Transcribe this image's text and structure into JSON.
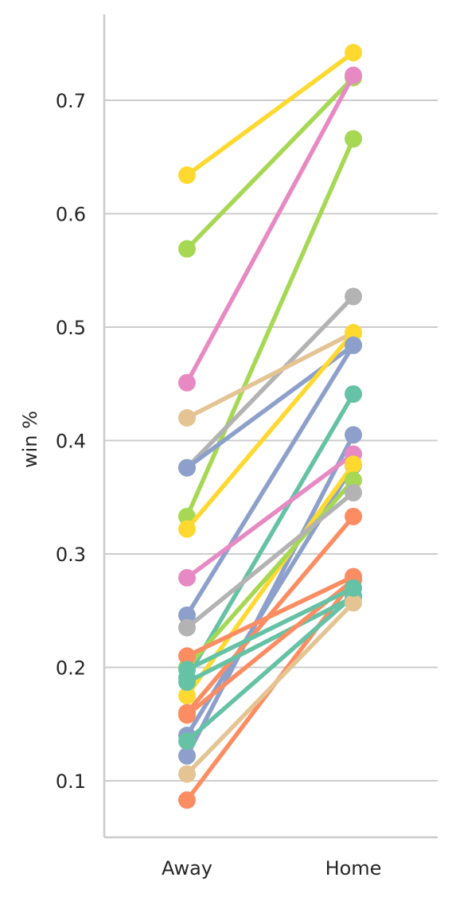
{
  "chart_data": {
    "type": "line",
    "title": "",
    "xlabel": "",
    "ylabel": "win %",
    "categories": [
      "Away",
      "Home"
    ],
    "ylim": [
      0.05,
      0.78
    ],
    "yticks": [
      0.1,
      0.2,
      0.3,
      0.4,
      0.5,
      0.6,
      0.7
    ],
    "ytick_labels": [
      "0.1",
      "0.2",
      "0.3",
      "0.4",
      "0.5",
      "0.6",
      "0.7"
    ],
    "grid": "horizontal",
    "series": [
      {
        "values": [
          0.634,
          0.742
        ],
        "color": "#ffd92f"
      },
      {
        "values": [
          0.569,
          0.72
        ],
        "color": "#a6d854"
      },
      {
        "values": [
          0.451,
          0.722
        ],
        "color": "#e78ac3"
      },
      {
        "values": [
          0.333,
          0.666
        ],
        "color": "#a6d854"
      },
      {
        "values": [
          0.376,
          0.527
        ],
        "color": "#b3b3b3"
      },
      {
        "values": [
          0.42,
          0.495
        ],
        "color": "#e5c494"
      },
      {
        "values": [
          0.376,
          0.484
        ],
        "color": "#8da0cb"
      },
      {
        "values": [
          0.322,
          0.495
        ],
        "color": "#ffd92f"
      },
      {
        "values": [
          0.191,
          0.441
        ],
        "color": "#66c2a5"
      },
      {
        "values": [
          0.246,
          0.484
        ],
        "color": "#8da0cb"
      },
      {
        "values": [
          0.122,
          0.405
        ],
        "color": "#8da0cb"
      },
      {
        "values": [
          0.279,
          0.388
        ],
        "color": "#e78ac3"
      },
      {
        "values": [
          0.14,
          0.378
        ],
        "color": "#8da0cb"
      },
      {
        "values": [
          0.175,
          0.379
        ],
        "color": "#ffd92f"
      },
      {
        "values": [
          0.2,
          0.365
        ],
        "color": "#a6d854"
      },
      {
        "values": [
          0.235,
          0.354
        ],
        "color": "#b3b3b3"
      },
      {
        "values": [
          0.16,
          0.333
        ],
        "color": "#fc8d62"
      },
      {
        "values": [
          0.21,
          0.28
        ],
        "color": "#fc8d62"
      },
      {
        "values": [
          0.083,
          0.277
        ],
        "color": "#fc8d62"
      },
      {
        "values": [
          0.135,
          0.263
        ],
        "color": "#66c2a5"
      },
      {
        "values": [
          0.187,
          0.262
        ],
        "color": "#66c2a5"
      },
      {
        "values": [
          0.106,
          0.257
        ],
        "color": "#e5c494"
      },
      {
        "values": [
          0.158,
          0.277
        ],
        "color": "#fc8d62"
      },
      {
        "values": [
          0.198,
          0.27
        ],
        "color": "#66c2a5"
      }
    ]
  }
}
